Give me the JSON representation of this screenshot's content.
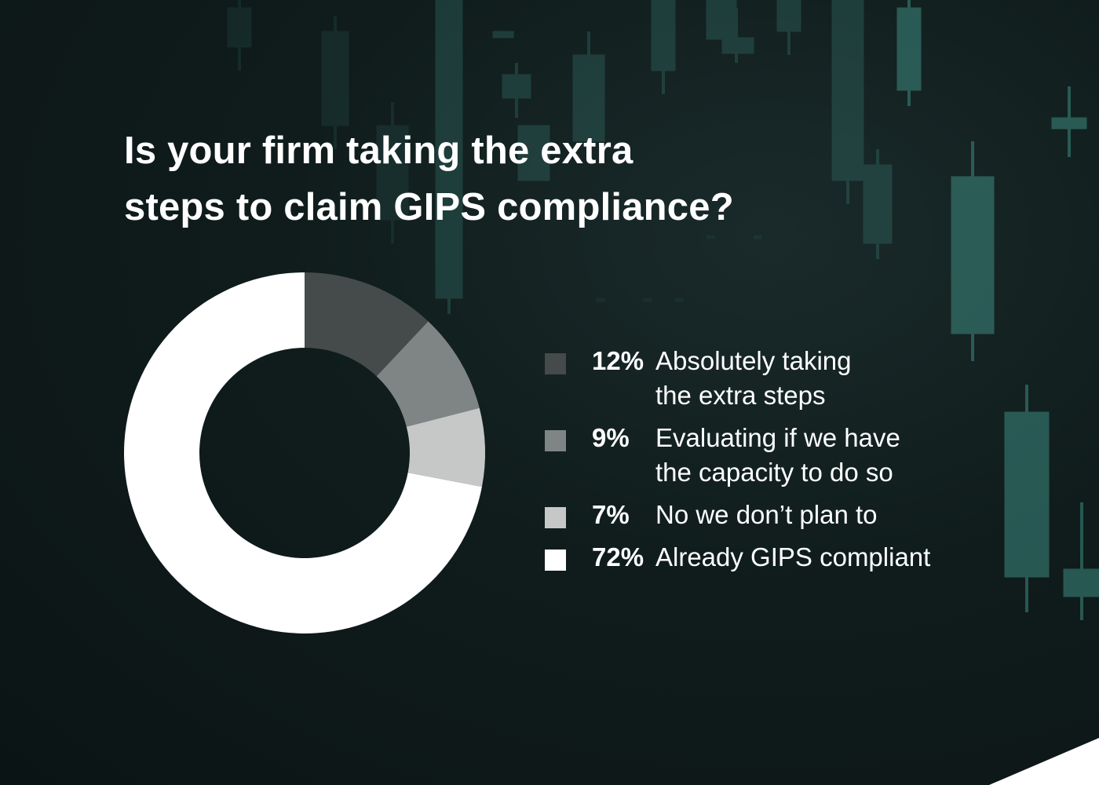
{
  "title_lines": [
    "Is your firm taking the extra",
    "steps to claim GIPS compliance?"
  ],
  "chart_data": {
    "type": "pie",
    "donut": true,
    "slices": [
      {
        "label": "Absolutely taking the extra steps",
        "value": 12,
        "display": "12%",
        "color": "#454a4a",
        "label_lines": [
          "Absolutely taking",
          "the extra steps"
        ]
      },
      {
        "label": "Evaluating if we have the capacity to do so",
        "value": 9,
        "display": "9%",
        "color": "#7f8585",
        "label_lines": [
          "Evaluating if we have",
          "the capacity to do so"
        ]
      },
      {
        "label": "No we don’t plan to",
        "value": 7,
        "display": "7%",
        "color": "#c6c8c8",
        "label_lines": [
          "No we don’t plan to"
        ]
      },
      {
        "label": "Already GIPS compliant",
        "value": 72,
        "display": "72%",
        "color": "#ffffff",
        "label_lines": [
          "Already GIPS compliant"
        ]
      }
    ]
  },
  "colors": {
    "background": "#101b1b",
    "candle_accent": "#3d8a80",
    "text": "#ffffff"
  }
}
